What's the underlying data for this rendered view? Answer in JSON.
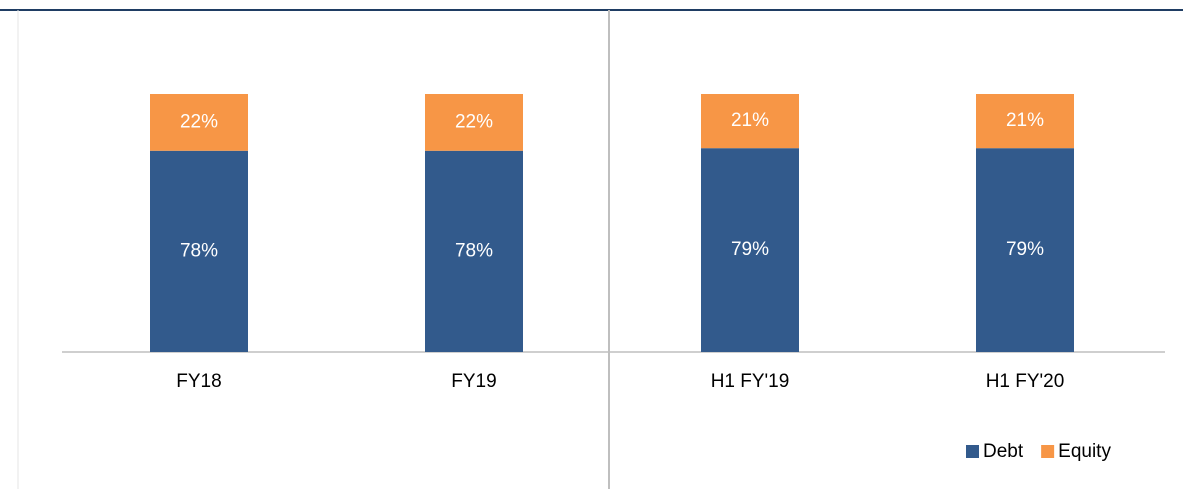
{
  "chart_data": {
    "type": "stacked-bar",
    "categories": [
      "FY18",
      "FY19",
      "H1 FY'19",
      "H1 FY'20"
    ],
    "series": [
      {
        "name": "Debt",
        "color": "#325a8c",
        "values": [
          78,
          78,
          79,
          79
        ],
        "value_labels": [
          "78%",
          "78%",
          "79%",
          "79%"
        ]
      },
      {
        "name": "Equity",
        "color": "#f79646",
        "values": [
          22,
          22,
          21,
          21
        ],
        "value_labels": [
          "22%",
          "22%",
          "21%",
          "21%"
        ]
      }
    ]
  }
}
